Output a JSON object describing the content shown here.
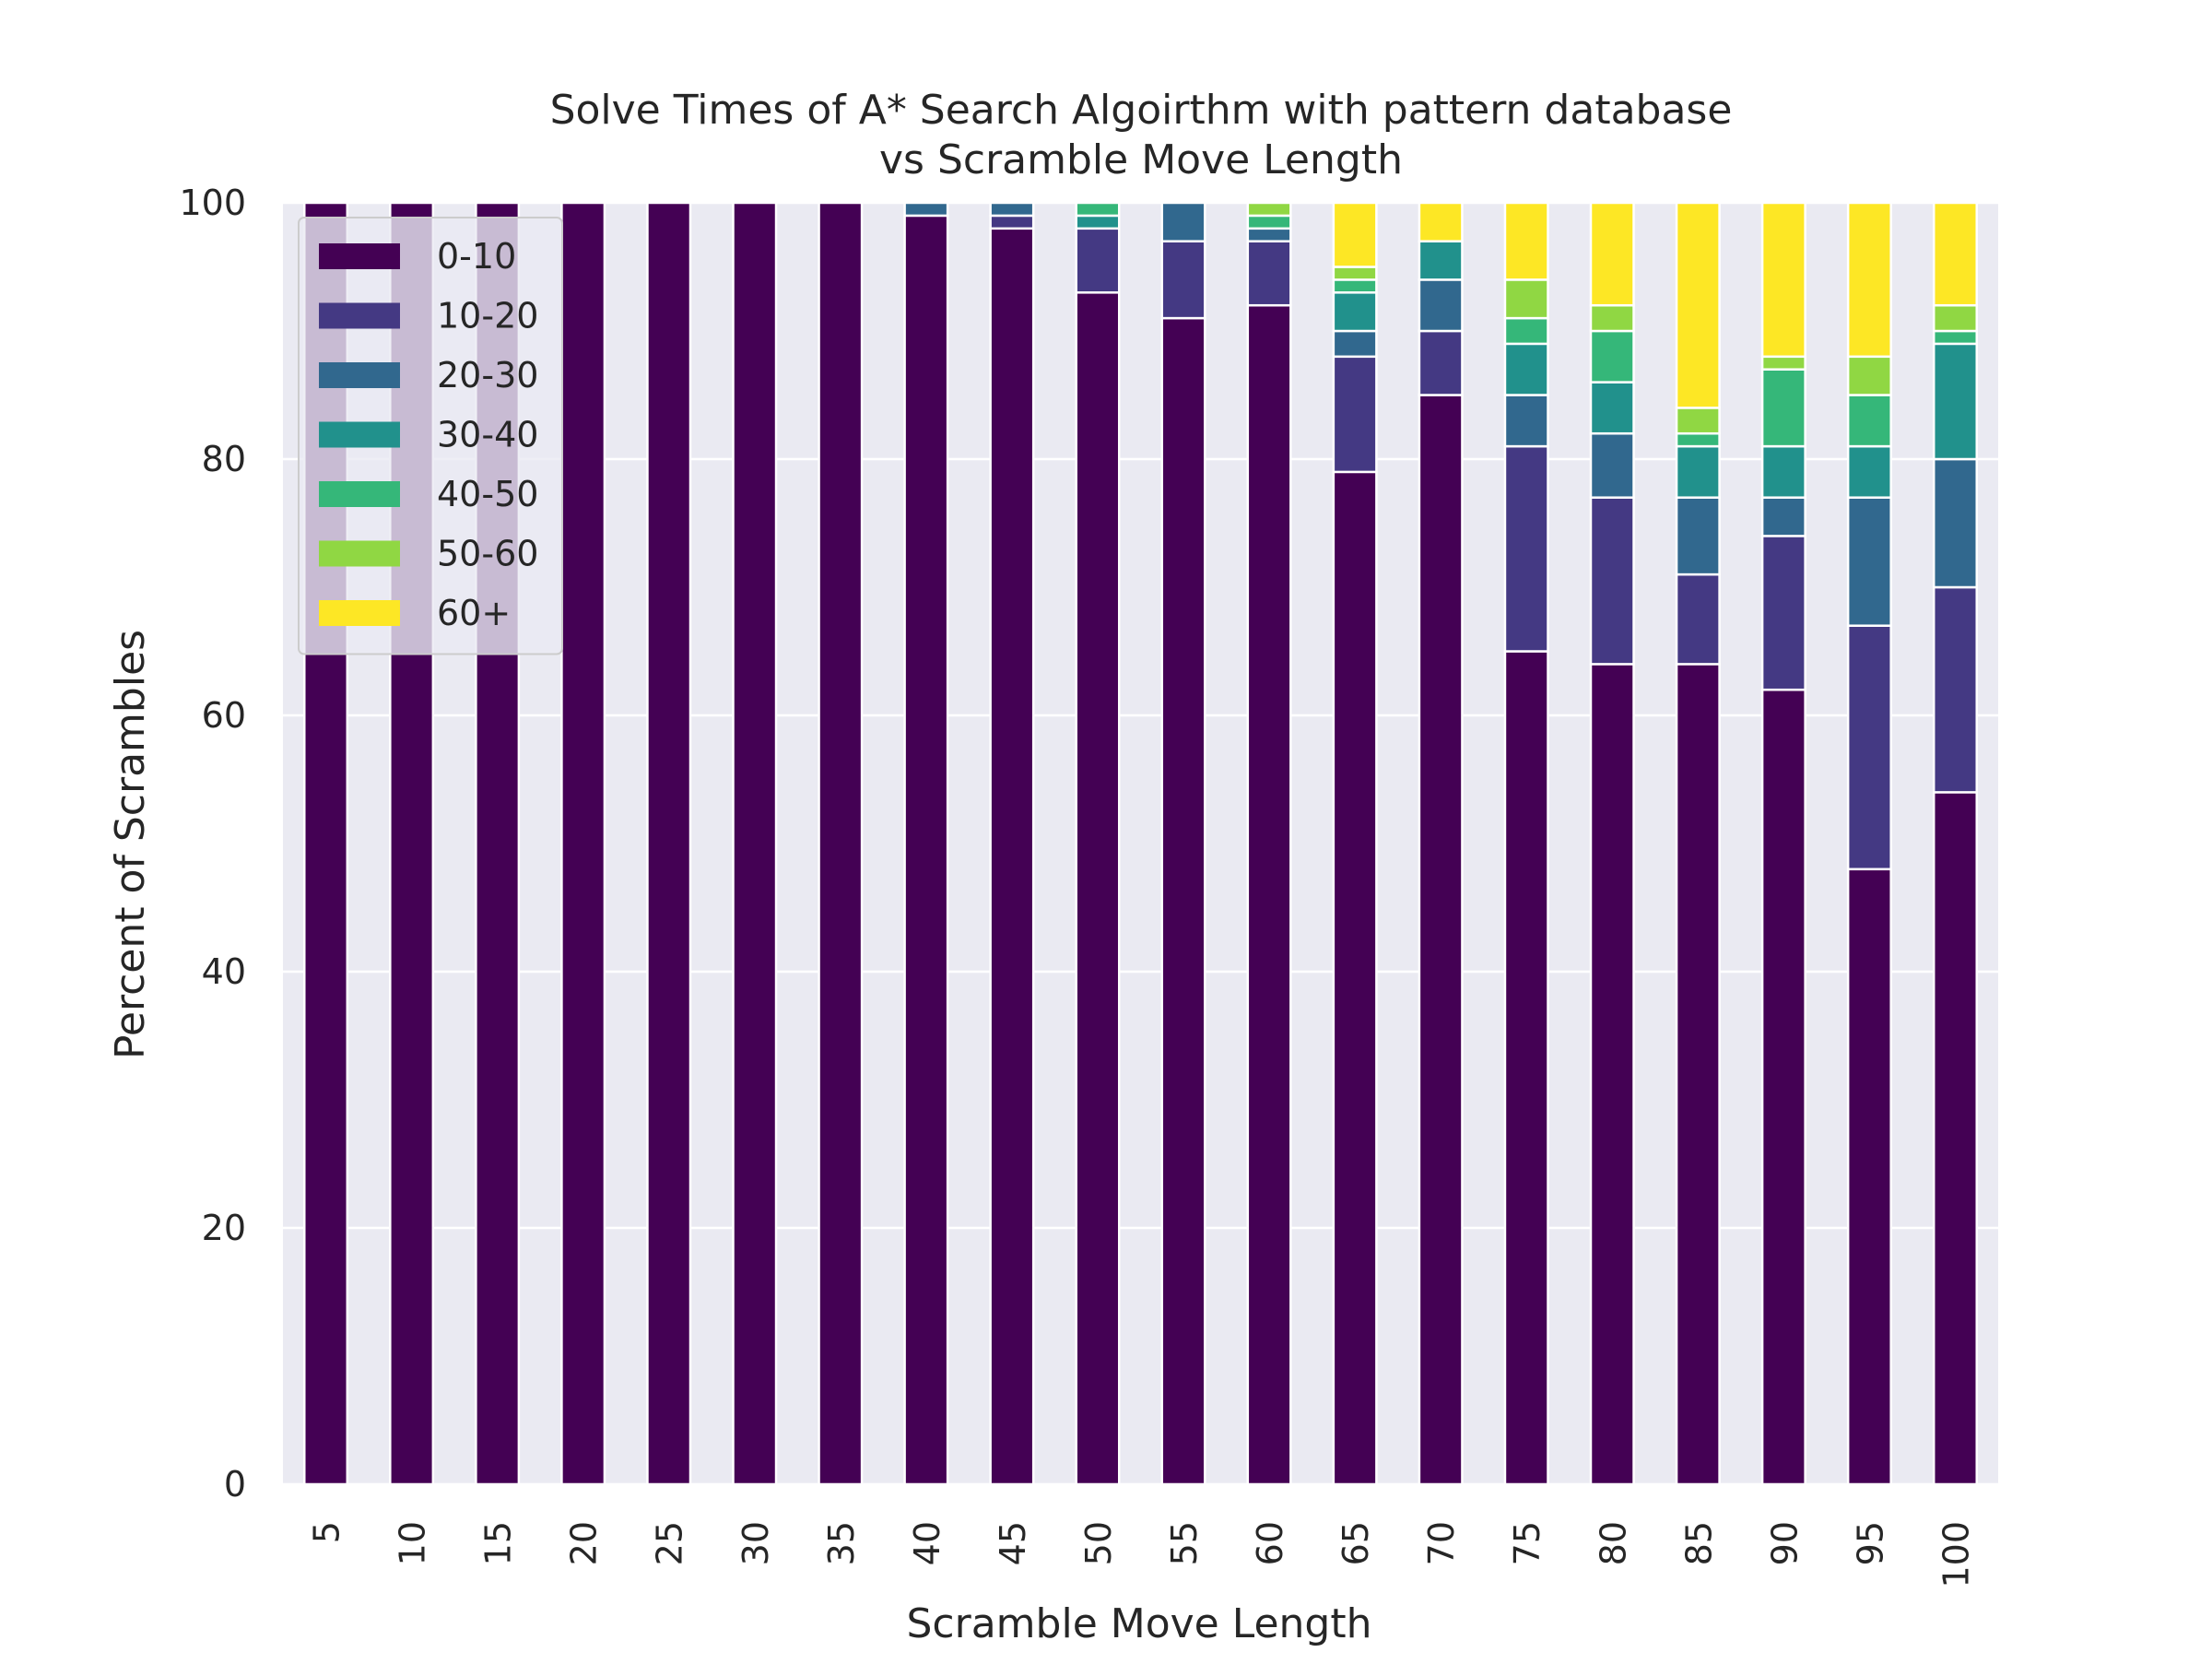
{
  "chart_data": {
    "type": "bar",
    "stacked": true,
    "title": [
      "Solve Times of A* Search Algoirthm with pattern database",
      "vs Scramble Move Length"
    ],
    "xlabel": "Scramble Move Length",
    "ylabel": "Percent of Scrambles",
    "ylim": [
      0,
      100
    ],
    "yticks": [
      "0",
      "20",
      "40",
      "60",
      "80",
      "100"
    ],
    "grid": true,
    "legend_position": "upper-left",
    "categories": [
      "5",
      "10",
      "15",
      "20",
      "25",
      "30",
      "35",
      "40",
      "45",
      "50",
      "55",
      "60",
      "65",
      "70",
      "75",
      "80",
      "85",
      "90",
      "95",
      "100"
    ],
    "series": [
      {
        "name": "0-10",
        "color": "#440154",
        "values": [
          100,
          100,
          100,
          100,
          100,
          100,
          100,
          99,
          98,
          93,
          91,
          92,
          79,
          85,
          65,
          64,
          64,
          62,
          48,
          54
        ]
      },
      {
        "name": "10-20",
        "color": "#443983",
        "values": [
          0,
          0,
          0,
          0,
          0,
          0,
          0,
          0,
          1,
          5,
          6,
          5,
          9,
          5,
          16,
          13,
          7,
          12,
          19,
          16
        ]
      },
      {
        "name": "20-30",
        "color": "#31688e",
        "values": [
          0,
          0,
          0,
          0,
          0,
          0,
          0,
          1,
          1,
          0,
          3,
          1,
          2,
          4,
          4,
          5,
          6,
          3,
          10,
          10
        ]
      },
      {
        "name": "30-40",
        "color": "#21918c",
        "values": [
          0,
          0,
          0,
          0,
          0,
          0,
          0,
          0,
          0,
          1,
          0,
          0,
          3,
          3,
          4,
          4,
          4,
          4,
          4,
          9
        ]
      },
      {
        "name": "40-50",
        "color": "#35b779",
        "values": [
          0,
          0,
          0,
          0,
          0,
          0,
          0,
          0,
          0,
          1,
          0,
          1,
          1,
          0,
          2,
          4,
          1,
          6,
          4,
          1
        ]
      },
      {
        "name": "50-60",
        "color": "#90d743",
        "values": [
          0,
          0,
          0,
          0,
          0,
          0,
          0,
          0,
          0,
          0,
          0,
          1,
          1,
          0,
          3,
          2,
          2,
          1,
          3,
          2
        ]
      },
      {
        "name": "60+",
        "color": "#fde725",
        "values": [
          0,
          0,
          0,
          0,
          0,
          0,
          0,
          0,
          0,
          0,
          0,
          0,
          5,
          3,
          6,
          8,
          16,
          12,
          12,
          8
        ]
      }
    ]
  },
  "colors": {
    "plot_background": "#eaeaf2",
    "grid": "#ffffff",
    "text": "#262626"
  }
}
